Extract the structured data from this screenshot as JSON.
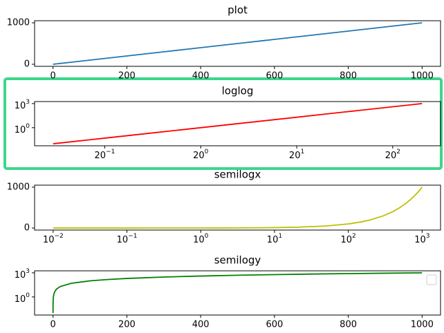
{
  "chart_data": [
    {
      "type": "line",
      "title": "plot",
      "x": [
        0.01,
        0.02,
        0.05,
        0.1,
        0.2,
        0.5,
        1,
        2,
        5,
        10,
        20,
        50,
        100,
        150,
        200,
        300,
        400,
        500,
        600,
        700,
        800,
        900,
        1000
      ],
      "series": [
        {
          "color": "#1f77b4",
          "values": [
            0.01,
            0.02,
            0.05,
            0.1,
            0.2,
            0.5,
            1,
            2,
            5,
            10,
            20,
            50,
            100,
            150,
            200,
            300,
            400,
            500,
            600,
            700,
            800,
            900,
            1000
          ]
        }
      ],
      "xscale": "linear",
      "yscale": "linear",
      "xlim": [
        -50,
        1050
      ],
      "ylim": [
        -50,
        1050
      ],
      "xticks": [
        0,
        200,
        400,
        600,
        800,
        1000
      ],
      "yticks": [
        0,
        1000
      ]
    },
    {
      "type": "line",
      "title": "loglog",
      "x": [
        0.01,
        0.02,
        0.05,
        0.1,
        0.2,
        0.5,
        1,
        2,
        5,
        10,
        20,
        50,
        100,
        150,
        200,
        300,
        400,
        500,
        600,
        700,
        800,
        900,
        1000
      ],
      "series": [
        {
          "color": "#ff0000",
          "values": [
            0.01,
            0.02,
            0.05,
            0.1,
            0.2,
            0.5,
            1,
            2,
            5,
            10,
            20,
            50,
            100,
            150,
            200,
            300,
            400,
            500,
            600,
            700,
            800,
            900,
            1000
          ]
        }
      ],
      "xscale": "log",
      "yscale": "log",
      "xlim": [
        0.0056,
        1778
      ],
      "ylim": [
        0.0056,
        1778
      ],
      "xticks": [
        {
          "value": 0.05,
          "label": {
            "base": "20",
            "exp": "−1"
          }
        },
        {
          "value": 1,
          "label": {
            "base": "20",
            "exp": "0"
          }
        },
        {
          "value": 20,
          "label": {
            "base": "20",
            "exp": "1"
          }
        },
        {
          "value": 400,
          "label": {
            "base": "20",
            "exp": "2"
          }
        }
      ],
      "yticks": [
        {
          "value": 1,
          "label": {
            "base": "10",
            "exp": "0"
          }
        },
        {
          "value": 1000,
          "label": {
            "base": "10",
            "exp": "3"
          }
        }
      ]
    },
    {
      "type": "line",
      "title": "semilogx",
      "x": [
        0.01,
        0.02,
        0.05,
        0.1,
        0.2,
        0.5,
        1,
        2,
        5,
        10,
        20,
        50,
        100,
        150,
        200,
        300,
        400,
        500,
        600,
        700,
        800,
        900,
        1000
      ],
      "series": [
        {
          "color": "#bfbf00",
          "values": [
            0.01,
            0.02,
            0.05,
            0.1,
            0.2,
            0.5,
            1,
            2,
            5,
            10,
            20,
            50,
            100,
            150,
            200,
            300,
            400,
            500,
            600,
            700,
            800,
            900,
            1000
          ]
        }
      ],
      "xscale": "log",
      "yscale": "linear",
      "xlim": [
        0.0056,
        1778
      ],
      "ylim": [
        -50,
        1050
      ],
      "xticks": [
        {
          "value": 0.01,
          "label": {
            "base": "10",
            "exp": "−2"
          }
        },
        {
          "value": 0.1,
          "label": {
            "base": "10",
            "exp": "−1"
          }
        },
        {
          "value": 1,
          "label": {
            "base": "10",
            "exp": "0"
          }
        },
        {
          "value": 10,
          "label": {
            "base": "10",
            "exp": "1"
          }
        },
        {
          "value": 100,
          "label": {
            "base": "10",
            "exp": "2"
          }
        },
        {
          "value": 1000,
          "label": {
            "base": "10",
            "exp": "3"
          }
        }
      ],
      "yticks": [
        0,
        1000
      ]
    },
    {
      "type": "line",
      "title": "semilogy",
      "x": [
        0.01,
        0.02,
        0.05,
        0.1,
        0.2,
        0.5,
        1,
        2,
        5,
        10,
        20,
        50,
        100,
        150,
        200,
        300,
        400,
        500,
        600,
        700,
        800,
        900,
        1000
      ],
      "series": [
        {
          "color": "#008000",
          "values": [
            0.01,
            0.02,
            0.05,
            0.1,
            0.2,
            0.5,
            1,
            2,
            5,
            10,
            20,
            50,
            100,
            150,
            200,
            300,
            400,
            500,
            600,
            700,
            800,
            900,
            1000
          ]
        }
      ],
      "xscale": "linear",
      "yscale": "log",
      "xlim": [
        -50,
        1050
      ],
      "ylim": [
        0.0056,
        1778
      ],
      "xticks": [
        0,
        200,
        400,
        600,
        800,
        1000
      ],
      "yticks": [
        {
          "value": 1,
          "label": {
            "base": "10",
            "exp": "0"
          }
        },
        {
          "value": 1000,
          "label": {
            "base": "10",
            "exp": "3"
          }
        }
      ],
      "legend": "upper right"
    }
  ]
}
